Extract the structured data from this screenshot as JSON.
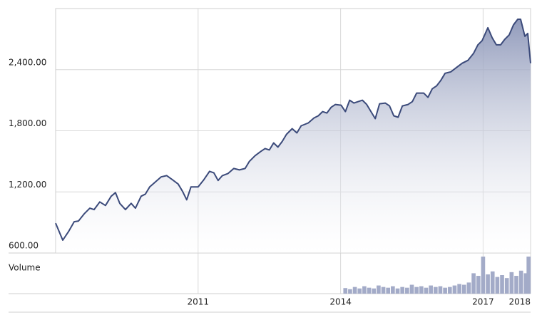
{
  "chart_data": {
    "type": "line",
    "x": [
      2008.0,
      2008.15,
      2008.27,
      2008.39,
      2008.48,
      2008.6,
      2008.72,
      2008.81,
      2008.93,
      2009.05,
      2009.17,
      2009.26,
      2009.35,
      2009.47,
      2009.59,
      2009.68,
      2009.8,
      2009.89,
      2009.98,
      2010.1,
      2010.22,
      2010.34,
      2010.46,
      2010.58,
      2010.67,
      2010.76,
      2010.85,
      2011.0,
      2011.12,
      2011.24,
      2011.33,
      2011.42,
      2011.51,
      2011.63,
      2011.75,
      2011.87,
      2011.99,
      2012.08,
      2012.2,
      2012.32,
      2012.41,
      2012.5,
      2012.59,
      2012.68,
      2012.77,
      2012.86,
      2012.98,
      2013.08,
      2013.17,
      2013.32,
      2013.44,
      2013.53,
      2013.62,
      2013.71,
      2013.8,
      2013.89,
      2014.01,
      2014.1,
      2014.19,
      2014.28,
      2014.37,
      2014.46,
      2014.55,
      2014.64,
      2014.73,
      2014.82,
      2014.94,
      2015.03,
      2015.12,
      2015.21,
      2015.3,
      2015.42,
      2015.51,
      2015.6,
      2015.75,
      2015.84,
      2015.93,
      2016.02,
      2016.11,
      2016.2,
      2016.32,
      2016.44,
      2016.56,
      2016.68,
      2016.8,
      2016.89,
      2016.98,
      2017.1,
      2017.19,
      2017.28,
      2017.37,
      2017.46,
      2017.55,
      2017.64,
      2017.73,
      2017.79,
      2017.88,
      2017.94,
      2018.0
    ],
    "values": [
      893,
      726,
      809,
      907,
      914,
      984,
      1040,
      1026,
      1102,
      1067,
      1158,
      1193,
      1088,
      1026,
      1088,
      1040,
      1158,
      1179,
      1249,
      1298,
      1347,
      1360,
      1319,
      1277,
      1207,
      1123,
      1249,
      1249,
      1319,
      1402,
      1388,
      1312,
      1360,
      1381,
      1430,
      1416,
      1430,
      1500,
      1556,
      1598,
      1626,
      1612,
      1681,
      1640,
      1695,
      1765,
      1821,
      1779,
      1849,
      1877,
      1926,
      1947,
      1988,
      1974,
      2030,
      2058,
      2051,
      1988,
      2100,
      2072,
      2086,
      2100,
      2058,
      1988,
      1919,
      2065,
      2072,
      2044,
      1947,
      1933,
      2044,
      2058,
      2086,
      2170,
      2170,
      2128,
      2212,
      2240,
      2295,
      2365,
      2379,
      2421,
      2463,
      2491,
      2561,
      2644,
      2686,
      2812,
      2714,
      2644,
      2644,
      2700,
      2742,
      2840,
      2895,
      2895,
      2728,
      2756,
      2463
    ],
    "color": "#3b4a7a",
    "fill": "#8c96b8",
    "xlim": [
      2008,
      2018
    ],
    "xticks": [
      2011,
      2014,
      2017,
      2018
    ],
    "ylim": [
      600,
      3000
    ],
    "yticks": [
      {
        "value": 600,
        "label": "600.00"
      },
      {
        "value": 1200,
        "label": "1,200.00"
      },
      {
        "value": 1800,
        "label": "1,800.00"
      },
      {
        "value": 2400,
        "label": "2,400.00"
      }
    ],
    "grid": true,
    "volume": {
      "label": "Volume",
      "color": "#a3abc8",
      "x": [
        2014.1,
        2014.2,
        2014.3,
        2014.4,
        2014.5,
        2014.6,
        2014.7,
        2014.8,
        2014.9,
        2015.0,
        2015.1,
        2015.2,
        2015.3,
        2015.4,
        2015.5,
        2015.6,
        2015.7,
        2015.8,
        2015.9,
        2016.0,
        2016.1,
        2016.2,
        2016.3,
        2016.4,
        2016.5,
        2016.6,
        2016.7,
        2016.8,
        2016.9,
        2017.0,
        2017.1,
        2017.2,
        2017.3,
        2017.4,
        2017.5,
        2017.6,
        2017.7,
        2017.8,
        2017.9,
        2018.0
      ],
      "values": [
        15,
        12,
        18,
        14,
        20,
        16,
        14,
        22,
        18,
        16,
        20,
        14,
        18,
        16,
        24,
        18,
        20,
        16,
        22,
        18,
        20,
        16,
        18,
        22,
        26,
        24,
        30,
        55,
        48,
        100,
        52,
        60,
        45,
        50,
        42,
        58,
        48,
        62,
        55,
        100
      ]
    }
  }
}
